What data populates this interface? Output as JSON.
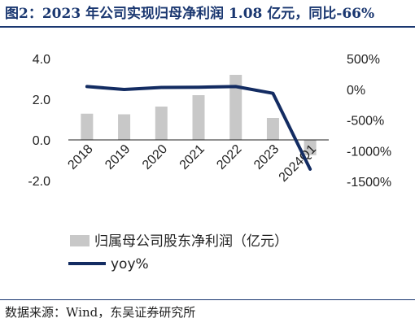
{
  "title": "图2：2023 年公司实现归母净利润 1.08 亿元，同比-66%",
  "source": "数据来源：Wind，东吴证券研究所",
  "colors": {
    "bar": "#c8c8c8",
    "line": "#132c62",
    "title": "#1a3770"
  },
  "chart_data": {
    "type": "bar",
    "categories": [
      "2018",
      "2019",
      "2020",
      "2021",
      "2022",
      "2023",
      "2024Q1"
    ],
    "series": [
      {
        "name": "归属母公司股东净利润（亿元）",
        "type": "bar",
        "axis": "left",
        "values": [
          1.29,
          1.26,
          1.64,
          2.2,
          3.2,
          1.08,
          -0.75
        ]
      },
      {
        "name": "yoy%",
        "type": "line",
        "axis": "right",
        "values": [
          45,
          -3,
          30,
          34,
          45,
          -66,
          -1300
        ]
      }
    ],
    "y_left": {
      "ylim": [
        -2.0,
        4.0
      ],
      "ticks": [
        "4.0",
        "2.0",
        "0.0",
        "-2.0"
      ]
    },
    "y_right": {
      "ylim": [
        -1500,
        500
      ],
      "ticks": [
        "500%",
        "0%",
        "-500%",
        "-1000%",
        "-1500%"
      ]
    },
    "legend_position": "bottom"
  }
}
